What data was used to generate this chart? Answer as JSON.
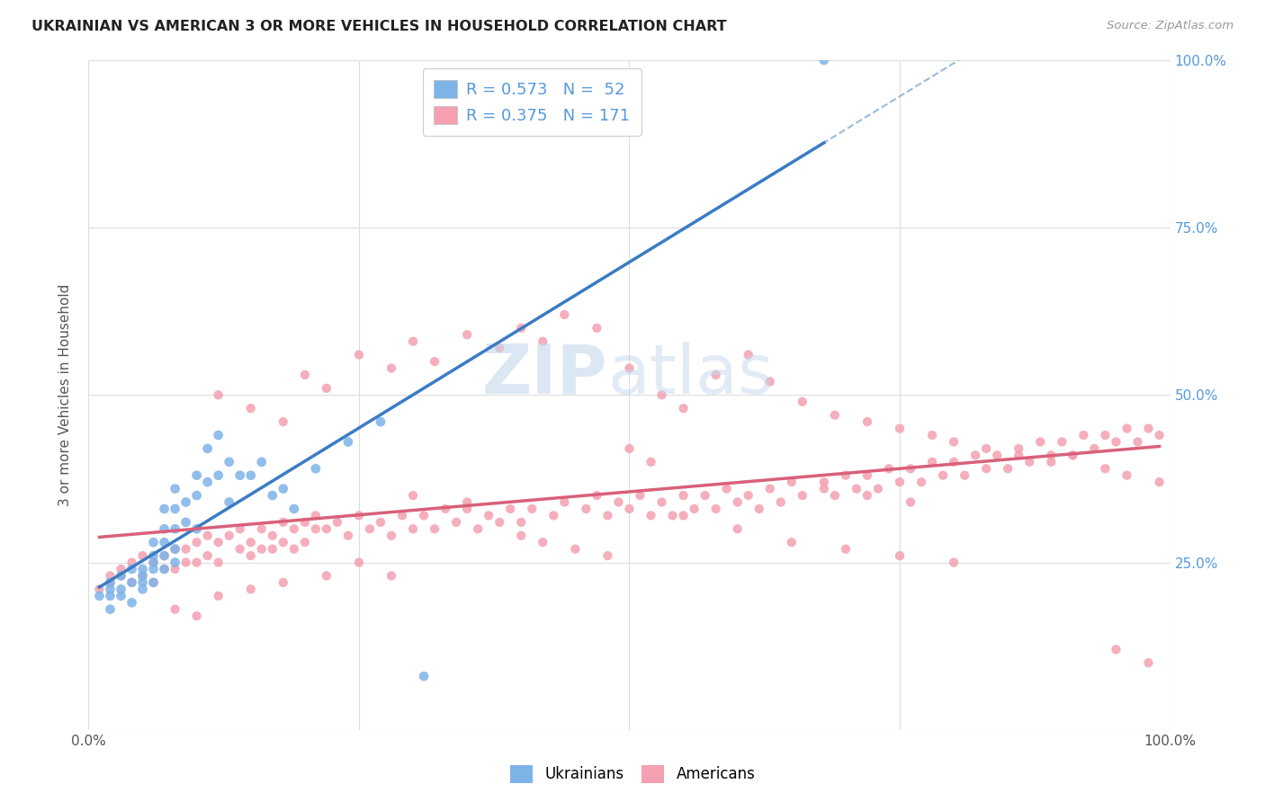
{
  "title": "UKRAINIAN VS AMERICAN 3 OR MORE VEHICLES IN HOUSEHOLD CORRELATION CHART",
  "source": "Source: ZipAtlas.com",
  "ylabel": "3 or more Vehicles in Household",
  "ukr_color": "#7EB3E8",
  "amer_color": "#F4A0B0",
  "trendline_ukr_color": "#3A7CC4",
  "trendline_amer_color": "#D9607A",
  "dashed_line_color": "#99BBDD",
  "background_color": "#FFFFFF",
  "grid_color": "#DDDDDD",
  "legend_text_color": "#5599DD",
  "right_axis_color": "#5599DD",
  "xlim": [
    0.0,
    1.0
  ],
  "ylim": [
    0.0,
    1.0
  ],
  "yticks_right": [
    0.25,
    0.5,
    0.75,
    1.0
  ],
  "ytick_labels_right": [
    "25.0%",
    "50.0%",
    "75.0%",
    "100.0%"
  ],
  "ukr_x": [
    0.01,
    0.02,
    0.02,
    0.02,
    0.02,
    0.03,
    0.03,
    0.03,
    0.04,
    0.04,
    0.04,
    0.05,
    0.05,
    0.05,
    0.05,
    0.06,
    0.06,
    0.06,
    0.06,
    0.06,
    0.07,
    0.07,
    0.07,
    0.07,
    0.07,
    0.08,
    0.08,
    0.08,
    0.08,
    0.08,
    0.09,
    0.09,
    0.1,
    0.1,
    0.1,
    0.11,
    0.11,
    0.12,
    0.12,
    0.13,
    0.13,
    0.14,
    0.15,
    0.16,
    0.17,
    0.18,
    0.19,
    0.21,
    0.24,
    0.27,
    0.31,
    0.68
  ],
  "ukr_y": [
    0.2,
    0.22,
    0.21,
    0.2,
    0.18,
    0.23,
    0.21,
    0.2,
    0.24,
    0.22,
    0.19,
    0.24,
    0.23,
    0.22,
    0.21,
    0.28,
    0.26,
    0.25,
    0.24,
    0.22,
    0.33,
    0.3,
    0.28,
    0.26,
    0.24,
    0.36,
    0.33,
    0.3,
    0.27,
    0.25,
    0.34,
    0.31,
    0.38,
    0.35,
    0.3,
    0.42,
    0.37,
    0.44,
    0.38,
    0.4,
    0.34,
    0.38,
    0.38,
    0.4,
    0.35,
    0.36,
    0.33,
    0.39,
    0.43,
    0.46,
    0.08,
    1.0
  ],
  "amer_x": [
    0.01,
    0.02,
    0.02,
    0.03,
    0.03,
    0.04,
    0.04,
    0.05,
    0.05,
    0.06,
    0.06,
    0.07,
    0.07,
    0.08,
    0.08,
    0.09,
    0.09,
    0.1,
    0.1,
    0.11,
    0.11,
    0.12,
    0.12,
    0.13,
    0.14,
    0.14,
    0.15,
    0.15,
    0.16,
    0.16,
    0.17,
    0.17,
    0.18,
    0.18,
    0.19,
    0.19,
    0.2,
    0.2,
    0.21,
    0.21,
    0.22,
    0.23,
    0.24,
    0.25,
    0.26,
    0.27,
    0.28,
    0.29,
    0.3,
    0.31,
    0.32,
    0.33,
    0.34,
    0.35,
    0.36,
    0.37,
    0.38,
    0.39,
    0.4,
    0.41,
    0.43,
    0.44,
    0.46,
    0.47,
    0.48,
    0.49,
    0.5,
    0.51,
    0.52,
    0.53,
    0.54,
    0.55,
    0.56,
    0.57,
    0.58,
    0.59,
    0.6,
    0.61,
    0.62,
    0.63,
    0.64,
    0.65,
    0.66,
    0.68,
    0.69,
    0.7,
    0.71,
    0.72,
    0.73,
    0.74,
    0.75,
    0.76,
    0.77,
    0.78,
    0.79,
    0.8,
    0.81,
    0.82,
    0.83,
    0.84,
    0.85,
    0.86,
    0.87,
    0.88,
    0.89,
    0.9,
    0.91,
    0.92,
    0.93,
    0.94,
    0.95,
    0.96,
    0.97,
    0.98,
    0.99,
    0.12,
    0.15,
    0.18,
    0.2,
    0.22,
    0.25,
    0.28,
    0.3,
    0.32,
    0.35,
    0.38,
    0.4,
    0.42,
    0.44,
    0.47,
    0.5,
    0.53,
    0.55,
    0.58,
    0.61,
    0.63,
    0.66,
    0.69,
    0.72,
    0.75,
    0.78,
    0.8,
    0.83,
    0.86,
    0.89,
    0.91,
    0.94,
    0.96,
    0.99,
    0.08,
    0.1,
    0.12,
    0.15,
    0.18,
    0.22,
    0.65,
    0.7,
    0.75,
    0.8,
    0.55,
    0.6,
    0.95,
    0.98,
    0.4,
    0.42,
    0.45,
    0.48,
    0.3,
    0.35,
    0.5,
    0.52,
    0.25,
    0.28,
    0.68,
    0.72,
    0.76
  ],
  "amer_y": [
    0.21,
    0.23,
    0.22,
    0.24,
    0.23,
    0.25,
    0.22,
    0.26,
    0.23,
    0.25,
    0.22,
    0.26,
    0.24,
    0.27,
    0.24,
    0.27,
    0.25,
    0.28,
    0.25,
    0.29,
    0.26,
    0.28,
    0.25,
    0.29,
    0.27,
    0.3,
    0.28,
    0.26,
    0.3,
    0.27,
    0.29,
    0.27,
    0.31,
    0.28,
    0.3,
    0.27,
    0.31,
    0.28,
    0.3,
    0.32,
    0.3,
    0.31,
    0.29,
    0.32,
    0.3,
    0.31,
    0.29,
    0.32,
    0.3,
    0.32,
    0.3,
    0.33,
    0.31,
    0.33,
    0.3,
    0.32,
    0.31,
    0.33,
    0.31,
    0.33,
    0.32,
    0.34,
    0.33,
    0.35,
    0.32,
    0.34,
    0.33,
    0.35,
    0.32,
    0.34,
    0.32,
    0.35,
    0.33,
    0.35,
    0.33,
    0.36,
    0.34,
    0.35,
    0.33,
    0.36,
    0.34,
    0.37,
    0.35,
    0.37,
    0.35,
    0.38,
    0.36,
    0.38,
    0.36,
    0.39,
    0.37,
    0.39,
    0.37,
    0.4,
    0.38,
    0.4,
    0.38,
    0.41,
    0.39,
    0.41,
    0.39,
    0.42,
    0.4,
    0.43,
    0.41,
    0.43,
    0.41,
    0.44,
    0.42,
    0.44,
    0.43,
    0.45,
    0.43,
    0.45,
    0.44,
    0.5,
    0.48,
    0.46,
    0.53,
    0.51,
    0.56,
    0.54,
    0.58,
    0.55,
    0.59,
    0.57,
    0.6,
    0.58,
    0.62,
    0.6,
    0.54,
    0.5,
    0.48,
    0.53,
    0.56,
    0.52,
    0.49,
    0.47,
    0.46,
    0.45,
    0.44,
    0.43,
    0.42,
    0.41,
    0.4,
    0.41,
    0.39,
    0.38,
    0.37,
    0.18,
    0.17,
    0.2,
    0.21,
    0.22,
    0.23,
    0.28,
    0.27,
    0.26,
    0.25,
    0.32,
    0.3,
    0.12,
    0.1,
    0.29,
    0.28,
    0.27,
    0.26,
    0.35,
    0.34,
    0.42,
    0.4,
    0.25,
    0.23,
    0.36,
    0.35,
    0.34
  ]
}
